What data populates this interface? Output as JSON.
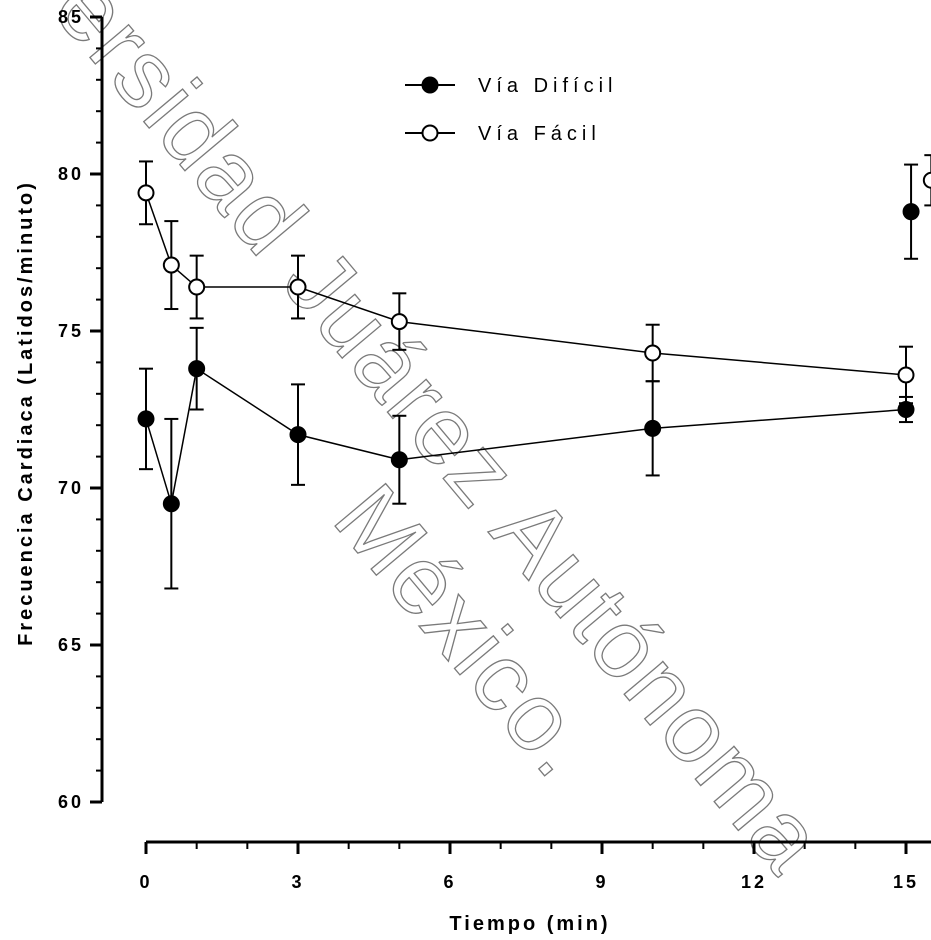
{
  "chart_data": {
    "type": "line",
    "title": "",
    "xlabel": "Tiempo (min)",
    "ylabel": "Frecuencia Cardiaca (Latidos/minuto)",
    "xlim": [
      0,
      15
    ],
    "ylim": [
      60,
      85
    ],
    "xticks": [
      0,
      3,
      6,
      9,
      12,
      15
    ],
    "yticks": [
      60,
      65,
      70,
      75,
      80,
      85
    ],
    "grid": false,
    "legend_position": "top-center",
    "series": [
      {
        "name": "Vía Difícil",
        "marker": "filled-circle",
        "connected": true,
        "x": [
          0,
          0.5,
          1,
          3,
          5,
          10,
          15
        ],
        "y": [
          72.2,
          69.5,
          73.8,
          71.7,
          70.9,
          71.9,
          72.5
        ],
        "error": [
          1.6,
          2.7,
          1.3,
          1.6,
          1.4,
          1.5,
          0.4
        ],
        "extra_point": {
          "x": 15.1,
          "y": 78.8,
          "error": 1.5
        }
      },
      {
        "name": "Vía Fácil",
        "marker": "open-circle",
        "connected": true,
        "x": [
          0,
          0.5,
          1,
          3,
          5,
          10,
          15
        ],
        "y": [
          79.4,
          77.1,
          76.4,
          76.4,
          75.3,
          74.3,
          73.6
        ],
        "error": [
          1.0,
          1.4,
          1.0,
          1.0,
          0.9,
          0.9,
          0.9
        ],
        "extra_point": {
          "x": 15.5,
          "y": 79.8,
          "error": 0.8
        }
      }
    ]
  },
  "watermark": {
    "line1": "ersidad Juárez Autónoma",
    "line2": "México."
  }
}
